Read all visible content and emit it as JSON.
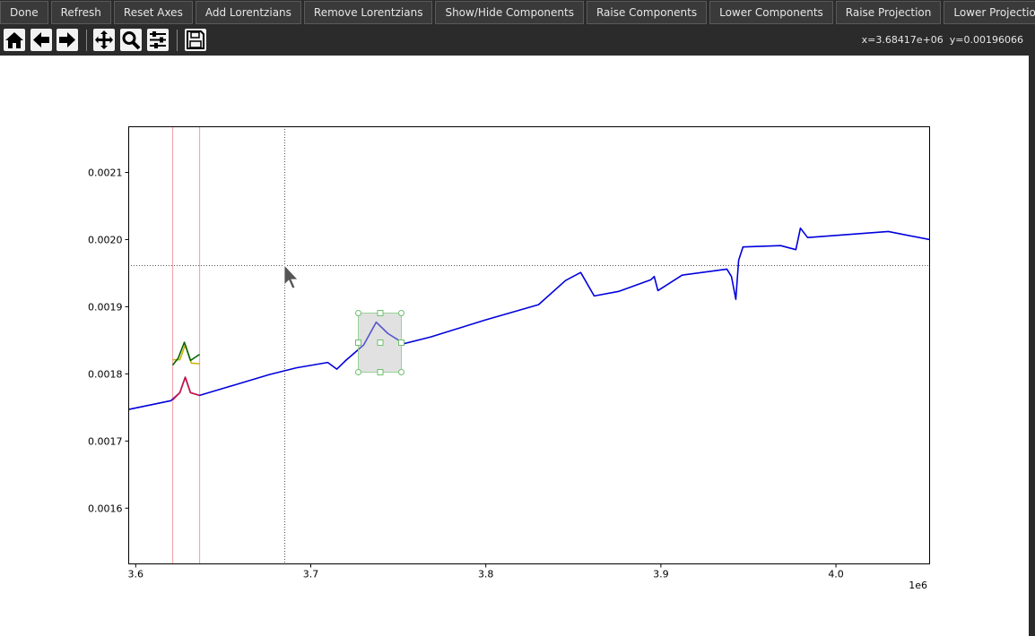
{
  "toolbar": {
    "buttons": [
      "Done",
      "Refresh",
      "Reset Axes",
      "Add Lorentzians",
      "Remove Lorentzians",
      "Show/Hide Components",
      "Raise Components",
      "Lower Components",
      "Raise Projection",
      "Lower Projection"
    ]
  },
  "status": "x=3.68417e+06  y=0.00196066",
  "chart_data": {
    "type": "line",
    "x_offset_label": "1e6",
    "xlim": [
      3.596,
      4.0535
    ],
    "ylim": [
      0.001517,
      0.002168
    ],
    "xticks": [
      3.6,
      3.7,
      3.8,
      3.9,
      {
        "value": 4,
        "label": "4.0"
      }
    ],
    "yticks": [
      0.0016,
      0.0017,
      0.0018,
      0.0019,
      {
        "value": 0.002,
        "label": "0.0020"
      },
      0.0021
    ],
    "grid": false,
    "span_lines": [
      3.6211,
      3.6365
    ],
    "span_color": "#f4a6ae",
    "series": [
      {
        "color": "#0000dd",
        "x": [
          3.596,
          3.6201,
          3.6252,
          3.6283,
          3.6313,
          3.6365,
          3.6559,
          3.6764,
          3.6918,
          3.7097,
          3.7149,
          3.72,
          3.7302,
          3.7374,
          3.7441,
          3.7533,
          3.7686,
          3.7994,
          3.8301,
          3.8455,
          3.8542,
          3.8619,
          3.8762,
          3.8942,
          3.8962,
          3.8983,
          3.9121,
          3.9377,
          3.9403,
          3.9428,
          3.9444,
          3.9469,
          3.9684,
          3.9771,
          3.9797,
          3.9838,
          4.0094,
          4.0299,
          4.0535
        ],
        "values": [
          0.001747,
          0.00176,
          0.001772,
          0.001795,
          0.001772,
          0.001768,
          0.001783,
          0.001799,
          0.001809,
          0.001817,
          0.001807,
          0.00182,
          0.001843,
          0.001877,
          0.00186,
          0.001845,
          0.001855,
          0.00188,
          0.001903,
          0.001939,
          0.001951,
          0.001916,
          0.001923,
          0.00194,
          0.001945,
          0.001924,
          0.001947,
          0.001956,
          0.001945,
          0.001911,
          0.001969,
          0.001989,
          0.001991,
          0.001985,
          0.002017,
          0.002003,
          0.002008,
          0.002012,
          0.002
        ]
      },
      {
        "color": "#d0143c",
        "x": [
          3.6211,
          3.6252,
          3.6283,
          3.6313,
          3.6365
        ],
        "values": [
          0.001761,
          0.001772,
          0.001795,
          0.001772,
          0.001768
        ]
      },
      {
        "color": "#c8b400",
        "x": [
          3.6211,
          3.6252,
          3.6283,
          3.6318,
          3.6365
        ],
        "values": [
          0.001821,
          0.001821,
          0.001843,
          0.001816,
          0.001815
        ]
      },
      {
        "color": "#006400",
        "x": [
          3.6211,
          3.6242,
          3.6278,
          3.6313,
          3.6365
        ],
        "values": [
          0.001813,
          0.001823,
          0.001847,
          0.00182,
          0.001829
        ]
      }
    ]
  }
}
